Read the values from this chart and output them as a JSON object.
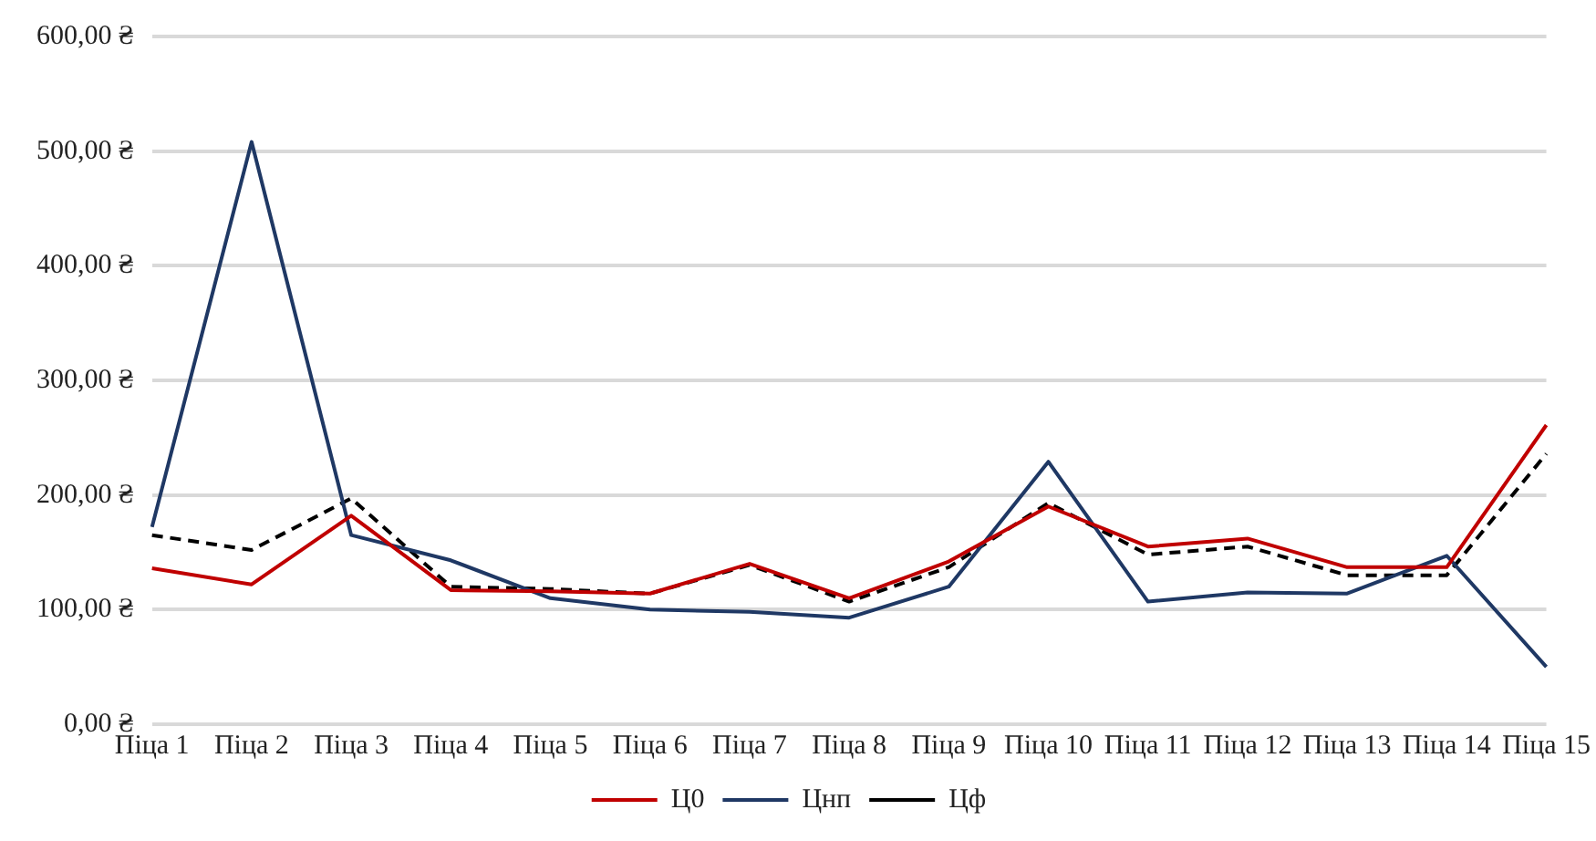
{
  "chart_data": {
    "type": "line",
    "categories": [
      "Піца 1",
      "Піца 2",
      "Піца 3",
      "Піца 4",
      "Піца 5",
      "Піца 6",
      "Піца 7",
      "Піца 8",
      "Піца 9",
      "Піца 10",
      "Піца 11",
      "Піца 12",
      "Піца 13",
      "Піца 14",
      "Піца 15"
    ],
    "series": [
      {
        "name": "Ц0",
        "color": "#c00000",
        "line_style": "solid",
        "values": [
          136,
          122,
          182,
          117,
          116,
          114,
          140,
          110,
          142,
          190,
          155,
          162,
          137,
          137,
          261
        ]
      },
      {
        "name": "Цнп",
        "color": "#1f3864",
        "line_style": "solid",
        "values": [
          172,
          508,
          165,
          143,
          110,
          100,
          98,
          93,
          120,
          229,
          107,
          115,
          114,
          147,
          50
        ]
      },
      {
        "name": "Цф",
        "color": "#000000",
        "line_style": "dashed",
        "values": [
          165,
          152,
          197,
          120,
          118,
          114,
          139,
          107,
          137,
          193,
          148,
          155,
          130,
          130,
          236
        ]
      }
    ],
    "ylim": [
      0,
      600
    ],
    "yticks": [
      {
        "value": 0,
        "label": "0,00 ₴"
      },
      {
        "value": 100,
        "label": "100,00 ₴"
      },
      {
        "value": 200,
        "label": "200,00 ₴"
      },
      {
        "value": 300,
        "label": "300,00 ₴"
      },
      {
        "value": 400,
        "label": "400,00 ₴"
      },
      {
        "value": 500,
        "label": "500,00 ₴"
      },
      {
        "value": 600,
        "label": "600,00 ₴"
      }
    ],
    "grid": "y",
    "legend": "bottom",
    "marker": "none"
  }
}
